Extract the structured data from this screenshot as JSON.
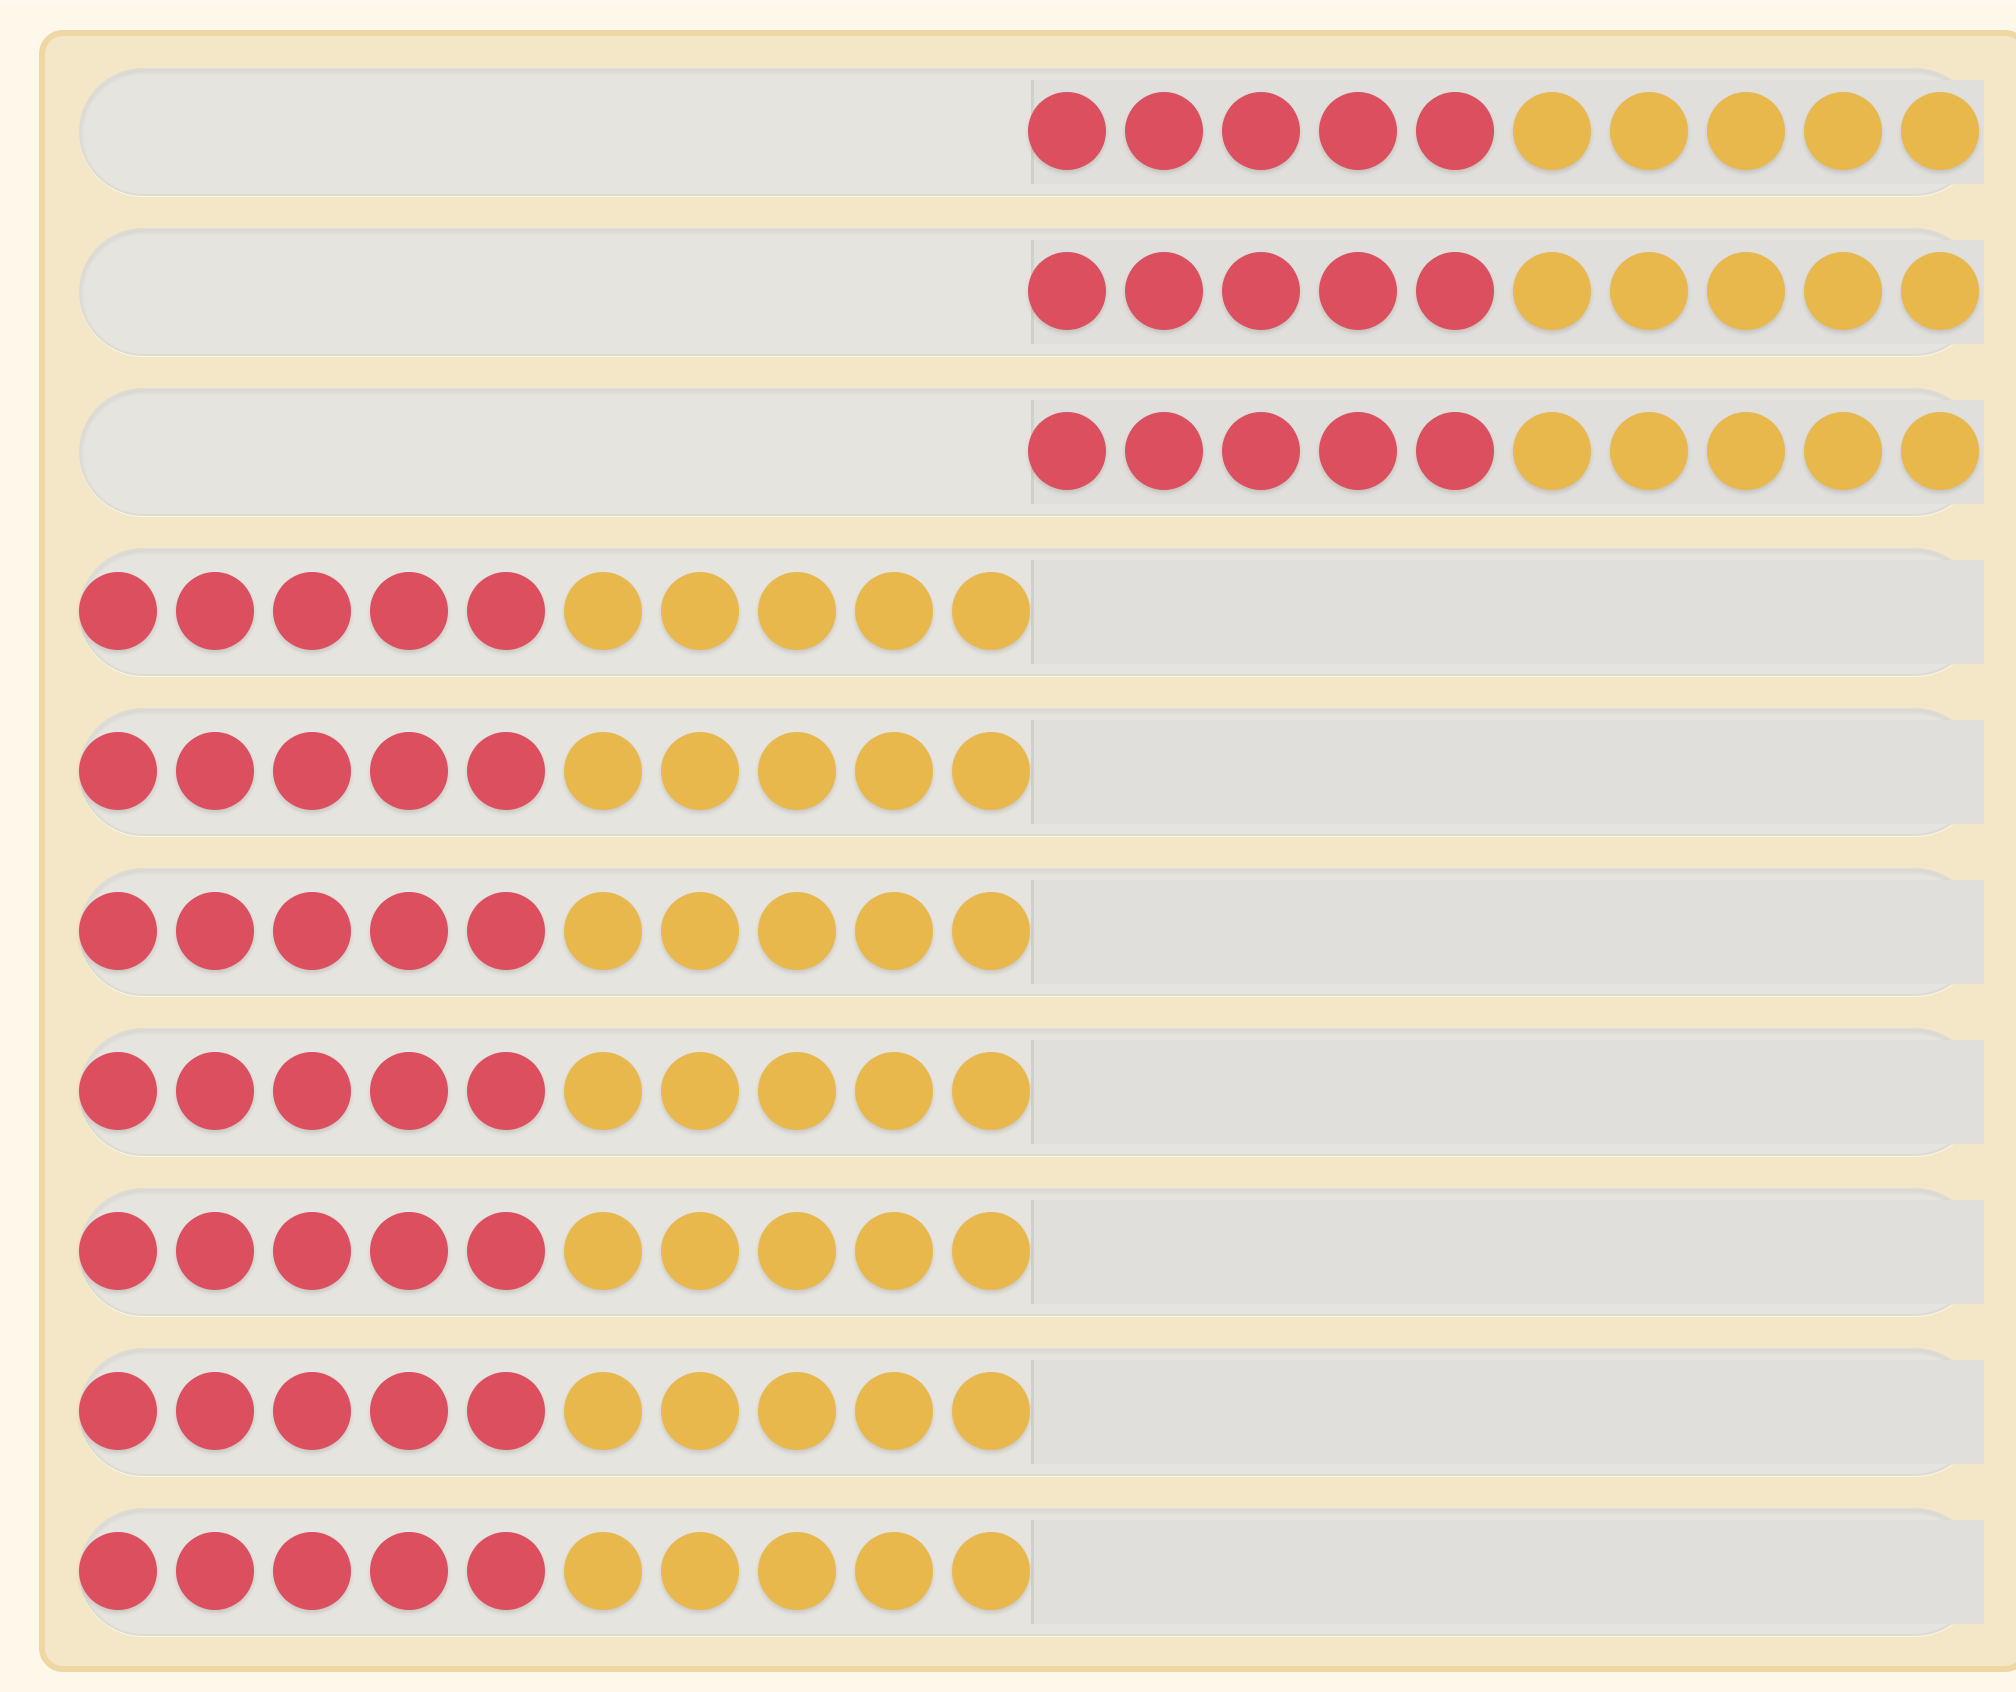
{
  "abacus": {
    "colors": {
      "red": "#dc4f5e",
      "yellow": "#e8b84d",
      "rack": "#f3e7c8",
      "rack_border": "#eed7a3",
      "row": "#e6e4df"
    },
    "beads_per_row": 10,
    "rows": [
      {
        "side": "right",
        "beads": [
          "red",
          "red",
          "red",
          "red",
          "red",
          "yellow",
          "yellow",
          "yellow",
          "yellow",
          "yellow"
        ]
      },
      {
        "side": "right",
        "beads": [
          "red",
          "red",
          "red",
          "red",
          "red",
          "yellow",
          "yellow",
          "yellow",
          "yellow",
          "yellow"
        ]
      },
      {
        "side": "right",
        "beads": [
          "red",
          "red",
          "red",
          "red",
          "red",
          "yellow",
          "yellow",
          "yellow",
          "yellow",
          "yellow"
        ]
      },
      {
        "side": "left",
        "beads": [
          "red",
          "red",
          "red",
          "red",
          "red",
          "yellow",
          "yellow",
          "yellow",
          "yellow",
          "yellow"
        ]
      },
      {
        "side": "left",
        "beads": [
          "red",
          "red",
          "red",
          "red",
          "red",
          "yellow",
          "yellow",
          "yellow",
          "yellow",
          "yellow"
        ]
      },
      {
        "side": "left",
        "beads": [
          "red",
          "red",
          "red",
          "red",
          "red",
          "yellow",
          "yellow",
          "yellow",
          "yellow",
          "yellow"
        ]
      },
      {
        "side": "left",
        "beads": [
          "red",
          "red",
          "red",
          "red",
          "red",
          "yellow",
          "yellow",
          "yellow",
          "yellow",
          "yellow"
        ]
      },
      {
        "side": "left",
        "beads": [
          "red",
          "red",
          "red",
          "red",
          "red",
          "yellow",
          "yellow",
          "yellow",
          "yellow",
          "yellow"
        ]
      },
      {
        "side": "left",
        "beads": [
          "red",
          "red",
          "red",
          "red",
          "red",
          "yellow",
          "yellow",
          "yellow",
          "yellow",
          "yellow"
        ]
      },
      {
        "side": "left",
        "beads": [
          "red",
          "red",
          "red",
          "red",
          "red",
          "yellow",
          "yellow",
          "yellow",
          "yellow",
          "yellow"
        ]
      }
    ]
  }
}
